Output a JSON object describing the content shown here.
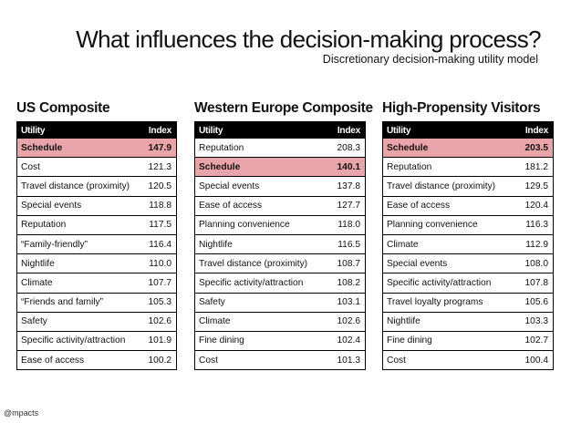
{
  "title": "What influences the decision-making process?",
  "subtitle": "Discretionary decision-making utility model",
  "logo": "@mpacts",
  "header_utility": "Utility",
  "header_index": "Index",
  "panels": [
    {
      "title": "US Composite",
      "rows": [
        {
          "utility": "Schedule",
          "index": "147.9",
          "highlight": true
        },
        {
          "utility": "Cost",
          "index": "121.3"
        },
        {
          "utility": "Travel distance (proximity)",
          "index": "120.5"
        },
        {
          "utility": "Special events",
          "index": "118.8"
        },
        {
          "utility": "Reputation",
          "index": "117.5"
        },
        {
          "utility": "“Family-friendly”",
          "index": "116.4"
        },
        {
          "utility": "Nightlife",
          "index": "110.0"
        },
        {
          "utility": "Climate",
          "index": "107.7"
        },
        {
          "utility": "“Friends and family”",
          "index": "105.3"
        },
        {
          "utility": "Safety",
          "index": "102.6"
        },
        {
          "utility": "Specific activity/attraction",
          "index": "101.9"
        },
        {
          "utility": "Ease of access",
          "index": "100.2"
        }
      ]
    },
    {
      "title": "Western Europe Composite",
      "rows": [
        {
          "utility": "Reputation",
          "index": "208.3"
        },
        {
          "utility": "Schedule",
          "index": "140.1",
          "highlight": true
        },
        {
          "utility": "Special events",
          "index": "137.8"
        },
        {
          "utility": "Ease of access",
          "index": "127.7"
        },
        {
          "utility": "Planning convenience",
          "index": "118.0"
        },
        {
          "utility": "Nightlife",
          "index": "116.5"
        },
        {
          "utility": "Travel distance (proximity)",
          "index": "108.7"
        },
        {
          "utility": "Specific activity/attraction",
          "index": "108.2"
        },
        {
          "utility": "Safety",
          "index": "103.1"
        },
        {
          "utility": "Climate",
          "index": "102.6"
        },
        {
          "utility": "Fine dining",
          "index": "102.4"
        },
        {
          "utility": "Cost",
          "index": "101.3"
        }
      ]
    },
    {
      "title": "High-Propensity Visitors",
      "rows": [
        {
          "utility": "Schedule",
          "index": "203.5",
          "highlight": true
        },
        {
          "utility": "Reputation",
          "index": "181.2"
        },
        {
          "utility": "Travel distance (proximity)",
          "index": "129.5"
        },
        {
          "utility": "Ease of access",
          "index": "120.4"
        },
        {
          "utility": "Planning convenience",
          "index": "116.3"
        },
        {
          "utility": "Climate",
          "index": "112.9"
        },
        {
          "utility": "Special events",
          "index": "108.0"
        },
        {
          "utility": "Specific activity/attraction",
          "index": "107.8"
        },
        {
          "utility": "Travel loyalty programs",
          "index": "105.6"
        },
        {
          "utility": "Nightlife",
          "index": "103.3"
        },
        {
          "utility": "Fine dining",
          "index": "102.7"
        },
        {
          "utility": "Cost",
          "index": "100.4"
        }
      ]
    }
  ]
}
